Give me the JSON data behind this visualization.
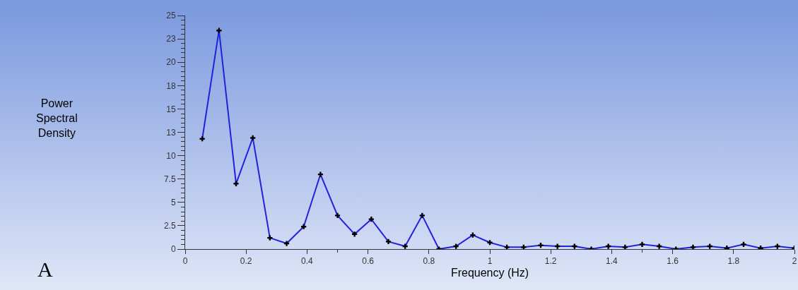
{
  "chart_data": {
    "type": "line",
    "xlabel": "Frequency (Hz)",
    "annotations": [
      "Power Spectral Density",
      "A"
    ],
    "x": [
      0.056,
      0.111,
      0.167,
      0.222,
      0.278,
      0.333,
      0.389,
      0.444,
      0.5,
      0.556,
      0.611,
      0.667,
      0.722,
      0.778,
      0.833,
      0.889,
      0.944,
      1,
      1.056,
      1.111,
      1.167,
      1.222,
      1.278,
      1.333,
      1.389,
      1.444,
      1.5,
      1.556,
      1.611,
      1.667,
      1.722,
      1.778,
      1.833,
      1.889,
      1.944,
      2
    ],
    "series": [
      {
        "color": "#2222dd",
        "values": [
          11.8,
          23.4,
          7.0,
          11.9,
          1.2,
          0.6,
          2.4,
          8.0,
          3.6,
          1.6,
          3.2,
          0.8,
          0.3,
          3.6,
          0.0,
          0.3,
          1.5,
          0.7,
          0.2,
          0.2,
          0.4,
          0.3,
          0.3,
          0.0,
          0.3,
          0.2,
          0.5,
          0.3,
          0.0,
          0.2,
          0.3,
          0.1,
          0.5,
          0.1,
          0.3,
          0.1
        ]
      }
    ],
    "xlim": [
      0,
      2
    ],
    "xticks": [
      0,
      0.2,
      0.4,
      0.6,
      0.8,
      1,
      1.2,
      1.4,
      1.6,
      1.8,
      2
    ],
    "ylim": [
      0,
      25
    ],
    "yticks": [
      0,
      2.5,
      5,
      7.5,
      10,
      {
        "value": 12.5,
        "label": "13"
      },
      15,
      {
        "value": 17.5,
        "label": "18"
      },
      20,
      {
        "value": 22.5,
        "label": "23"
      },
      25
    ],
    "grid": false,
    "marker": "cross",
    "line_style": "solid"
  }
}
